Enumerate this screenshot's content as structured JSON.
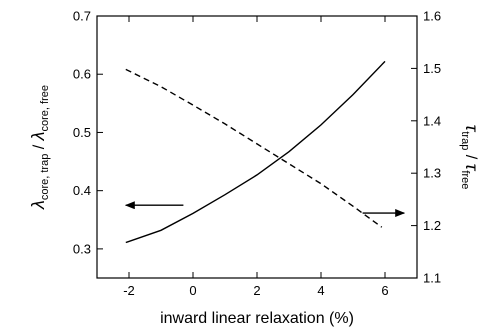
{
  "chart_data": {
    "type": "line",
    "xlabel": "inward linear relaxation (%)",
    "ylabel": {
      "main_num": "λ",
      "sub_num": "core, trap",
      "slash": " / ",
      "main_den": "λ",
      "sub_den": "core, free"
    },
    "y2label": {
      "main_num": "τ",
      "sub_num": "trap",
      "slash": " / ",
      "main_den": "τ",
      "sub_den": "free"
    },
    "xlim": [
      -3,
      7
    ],
    "ylim": [
      0.25,
      0.7
    ],
    "y2lim": [
      1.1,
      1.6
    ],
    "x_ticks": [
      -2,
      0,
      2,
      4,
      6
    ],
    "x_tick_labels": [
      "-2",
      "0",
      "2",
      "4",
      "6"
    ],
    "y_ticks": [
      0.3,
      0.4,
      0.5,
      0.6,
      0.7
    ],
    "y_tick_labels": [
      "0.3",
      "0.4",
      "0.5",
      "0.6",
      "0.7"
    ],
    "y2_ticks": [
      1.1,
      1.2,
      1.3,
      1.4,
      1.5,
      1.6
    ],
    "y2_tick_labels": [
      "1.1",
      "1.2",
      "1.3",
      "1.4",
      "1.5",
      "1.6"
    ],
    "series": [
      {
        "axis": "left",
        "style": "solid",
        "x": [
          -2.1,
          -1,
          0,
          1,
          2,
          3,
          4,
          5,
          6
        ],
        "y": [
          0.311,
          0.332,
          0.361,
          0.393,
          0.427,
          0.467,
          0.513,
          0.565,
          0.622
        ]
      },
      {
        "axis": "right",
        "style": "dashed",
        "x": [
          -2.1,
          -1,
          0,
          1,
          2,
          3,
          4,
          5,
          5.9
        ],
        "y": [
          1.498,
          1.465,
          1.43,
          1.394,
          1.356,
          1.318,
          1.28,
          1.237,
          1.197
        ]
      }
    ],
    "annotations": [
      {
        "type": "arrow",
        "direction": "left",
        "x_from": -0.3,
        "x_to": -2.1,
        "y": 0.375,
        "axis": "left"
      },
      {
        "type": "arrow",
        "direction": "right",
        "x_from": 5.3,
        "x_to": 6.6,
        "y": 1.224,
        "axis": "right"
      }
    ],
    "grid": false,
    "legend": "none"
  }
}
